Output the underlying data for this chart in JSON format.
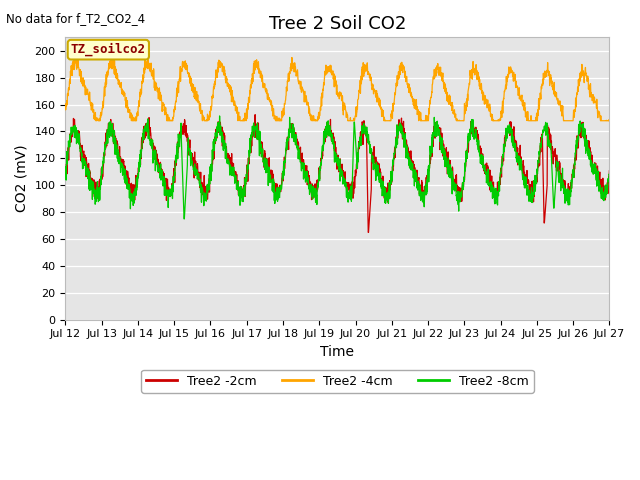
{
  "title": "Tree 2 Soil CO2",
  "no_data_text": "No data for f_T2_CO2_4",
  "ylabel": "CO2 (mV)",
  "xlabel": "Time",
  "ylim": [
    0,
    210
  ],
  "yticks": [
    0,
    20,
    40,
    60,
    80,
    100,
    120,
    140,
    160,
    180,
    200
  ],
  "background_color": "#e5e5e5",
  "fig_background": "#ffffff",
  "legend_box_label": "TZ_soilco2",
  "legend_box_color": "#ffffcc",
  "legend_box_edge": "#ccaa00",
  "line_colors": {
    "2cm": "#cc0000",
    "4cm": "#ffa500",
    "8cm": "#00cc00"
  },
  "legend_labels": {
    "2cm": "Tree2 -2cm",
    "4cm": "Tree2 -4cm",
    "8cm": "Tree2 -8cm"
  },
  "x_tick_labels": [
    "Jul 12",
    "Jul 13",
    "Jul 14",
    "Jul 15",
    "Jul 16",
    "Jul 17",
    "Jul 18",
    "Jul 19",
    "Jul 20",
    "Jul 21",
    "Jul 22",
    "Jul 23",
    "Jul 24",
    "Jul 25",
    "Jul 26",
    "Jul 27"
  ],
  "title_fontsize": 13,
  "axis_fontsize": 10,
  "tick_fontsize": 8,
  "n_days": 15,
  "points_per_day": 144
}
